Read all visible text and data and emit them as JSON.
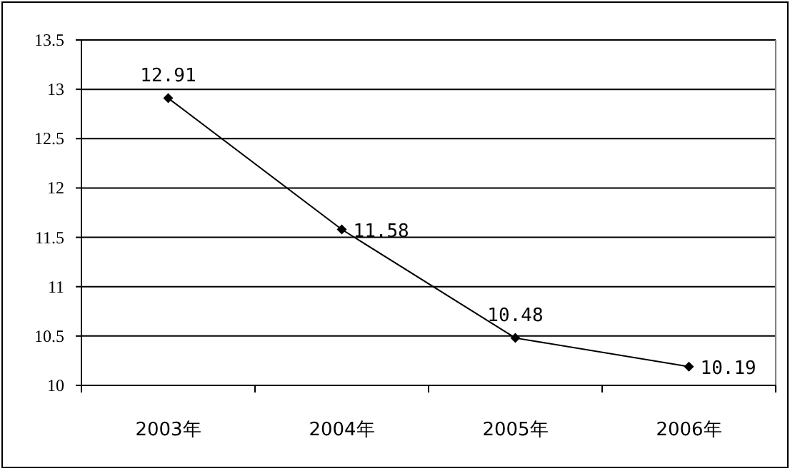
{
  "chart_data": {
    "type": "line",
    "categories": [
      "2003年",
      "2004年",
      "2005年",
      "2006年"
    ],
    "values": [
      12.91,
      11.58,
      10.48,
      10.19
    ],
    "color": "#000000",
    "ylim": [
      10,
      13.5
    ],
    "yticks": [
      10,
      10.5,
      11,
      11.5,
      12,
      12.5,
      13,
      13.5
    ],
    "grid": "y",
    "marker": "diamond",
    "line_style": "solid",
    "data_labels": true
  }
}
